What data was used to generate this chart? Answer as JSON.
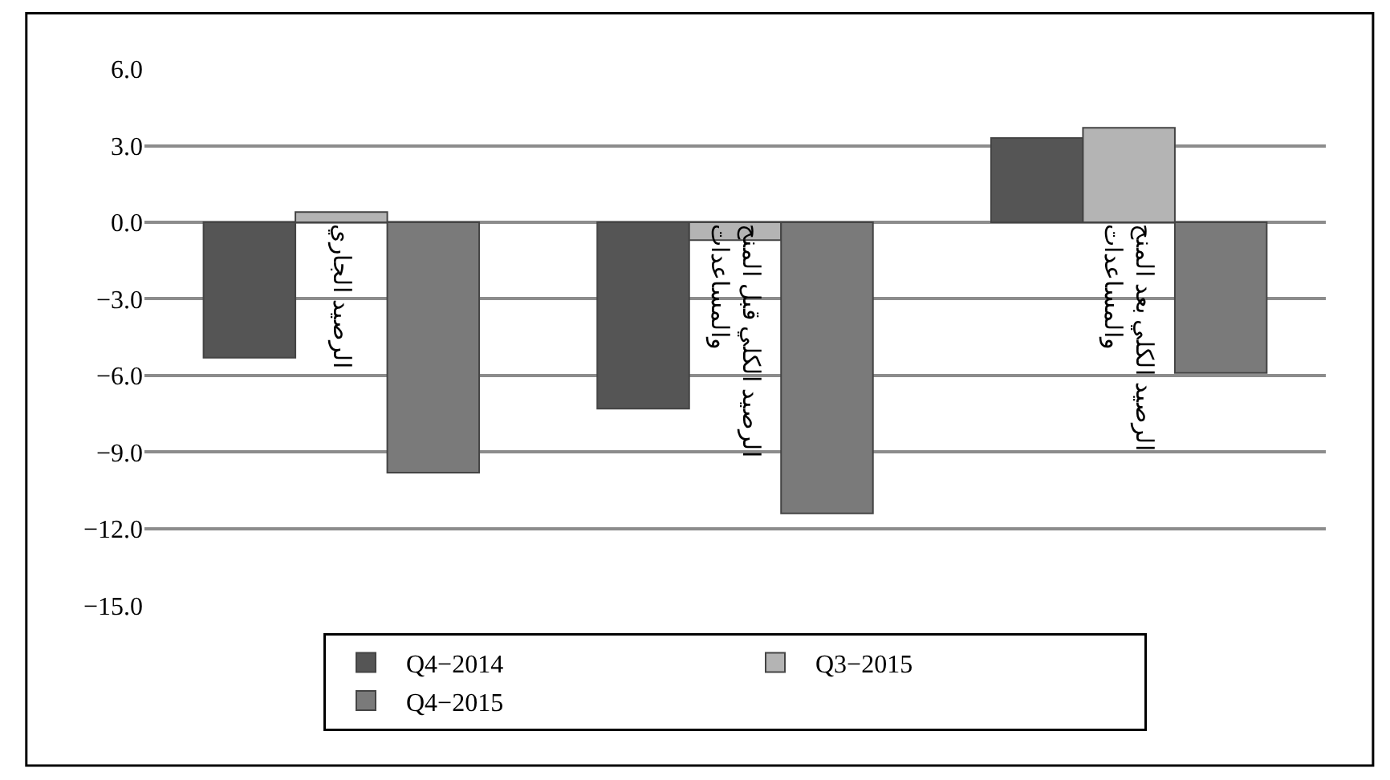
{
  "chart_data": {
    "type": "bar",
    "categories": [
      "الرصيد الجاري",
      "الرصيد الكلي قبل المنح\nوالمساعدات",
      "الرصيد الكلي بعد المنح\nوالمساعدات"
    ],
    "series": [
      {
        "name": "Q4−2014",
        "color": "#555555",
        "values": [
          -5.3,
          -7.3,
          3.3
        ]
      },
      {
        "name": "Q3−2015",
        "color": "#b4b4b4",
        "values": [
          0.4,
          -0.7,
          3.7
        ]
      },
      {
        "name": "Q4−2015",
        "color": "#7a7a7a",
        "values": [
          -9.8,
          -11.4,
          -5.9
        ]
      }
    ],
    "ylim": [
      -15,
      6
    ],
    "yticks": [
      {
        "value": 6,
        "label": "6.0"
      },
      {
        "value": 3,
        "label": "3.0"
      },
      {
        "value": 0,
        "label": "0.0"
      },
      {
        "value": -3,
        "label": "−3.0"
      },
      {
        "value": -6,
        "label": "−6.0"
      },
      {
        "value": -9,
        "label": "−9.0"
      },
      {
        "value": -12,
        "label": "−12.0"
      },
      {
        "value": -15,
        "label": "−15.0"
      }
    ],
    "grid": "y",
    "legend": "bottom"
  }
}
